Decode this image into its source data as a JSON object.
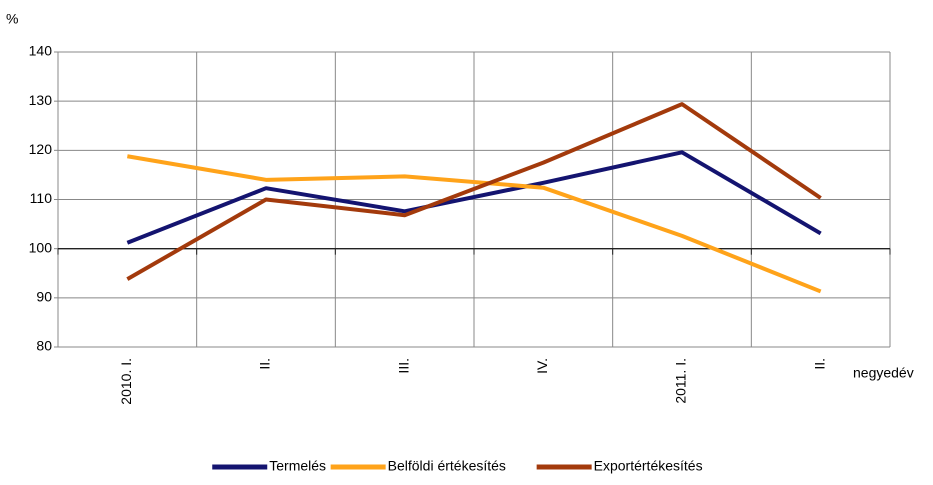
{
  "chart_data": {
    "type": "line",
    "ylabel": "%",
    "xlabel": "negyedév",
    "categories": [
      "2010. I.",
      "II.",
      "III.",
      "IV.",
      "2011. I.",
      "II."
    ],
    "series": [
      {
        "name": "Termelés",
        "color": "#141470",
        "values": [
          101.2,
          112.3,
          107.6,
          113.4,
          119.6,
          103.1
        ]
      },
      {
        "name": "Belföldi értékesítés",
        "color": "#ffa31a",
        "values": [
          118.8,
          114.0,
          114.7,
          112.4,
          102.6,
          91.3
        ]
      },
      {
        "name": "Exportértékesítés",
        "color": "#a33a0c",
        "values": [
          93.8,
          110.0,
          106.8,
          117.5,
          129.4,
          110.3
        ]
      }
    ],
    "ylim": [
      80,
      140
    ],
    "yticks": [
      80,
      90,
      100,
      110,
      120,
      130,
      140
    ],
    "x_axis_crosses": 100,
    "grid": true,
    "legend": "bottom"
  }
}
